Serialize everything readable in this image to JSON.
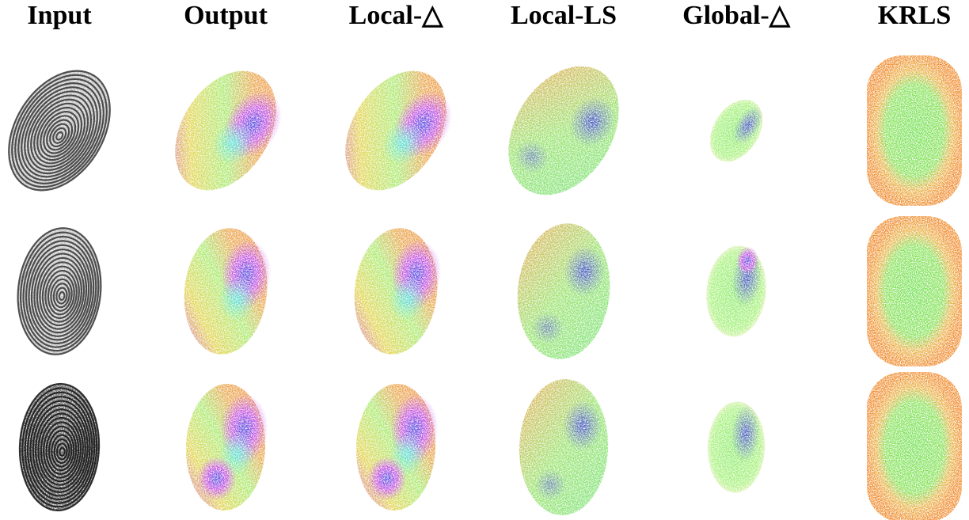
{
  "columns": [
    "Input",
    "Output",
    "Local-△",
    "Local-LS",
    "Global-△",
    "KRLS"
  ]
}
